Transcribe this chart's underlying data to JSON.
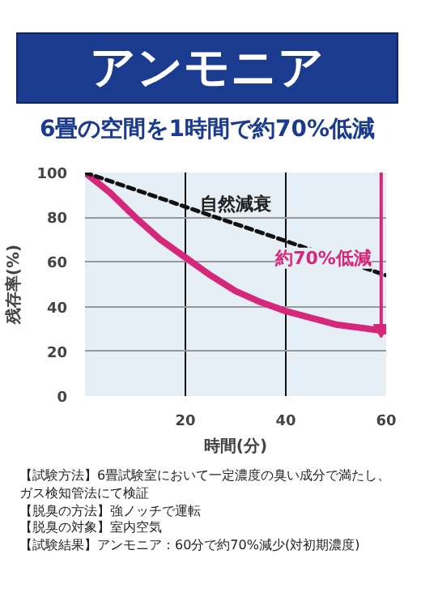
{
  "chart_data": {
    "type": "line",
    "title": "アンモニア",
    "subtitle": "6畳の空間を1時間で約70%低減",
    "xlabel": "時間(分)",
    "ylabel": "残存率(%)",
    "x": [
      0,
      5,
      10,
      15,
      20,
      25,
      30,
      35,
      40,
      45,
      50,
      55,
      60
    ],
    "series": [
      {
        "color": "#d6287a",
        "line_style": "solid",
        "values": [
          100,
          91,
          80,
          70,
          62,
          54,
          47,
          42,
          38,
          35,
          32,
          30.5,
          29
        ]
      },
      {
        "name": "自然減衰",
        "color": "#111111",
        "line_style": "dashed",
        "x": [
          0,
          60
        ],
        "values": [
          100,
          54
        ]
      },
      {
        "color": "#d6287a",
        "line_style": "solid",
        "x": [
          59,
          59
        ],
        "values": [
          100,
          30
        ]
      }
    ],
    "xlim": [
      0,
      60
    ],
    "ylim": [
      0,
      100
    ],
    "xticks": [
      {
        "value": 0,
        "label": null
      },
      20,
      40,
      60
    ],
    "yticks": [
      0,
      20,
      40,
      60,
      80,
      100
    ],
    "grid": true,
    "annotations": [
      "約70%低減",
      "【試験方法】6畳試験室において一定濃度の臭い成分で満たし、ガス検知管法にて検証",
      "【脱臭の方法】強ノッチで運転",
      "【脱臭の対象】室内空気",
      "【試験結果】アンモニア：60分で約70%減少(対初期濃度)"
    ]
  }
}
